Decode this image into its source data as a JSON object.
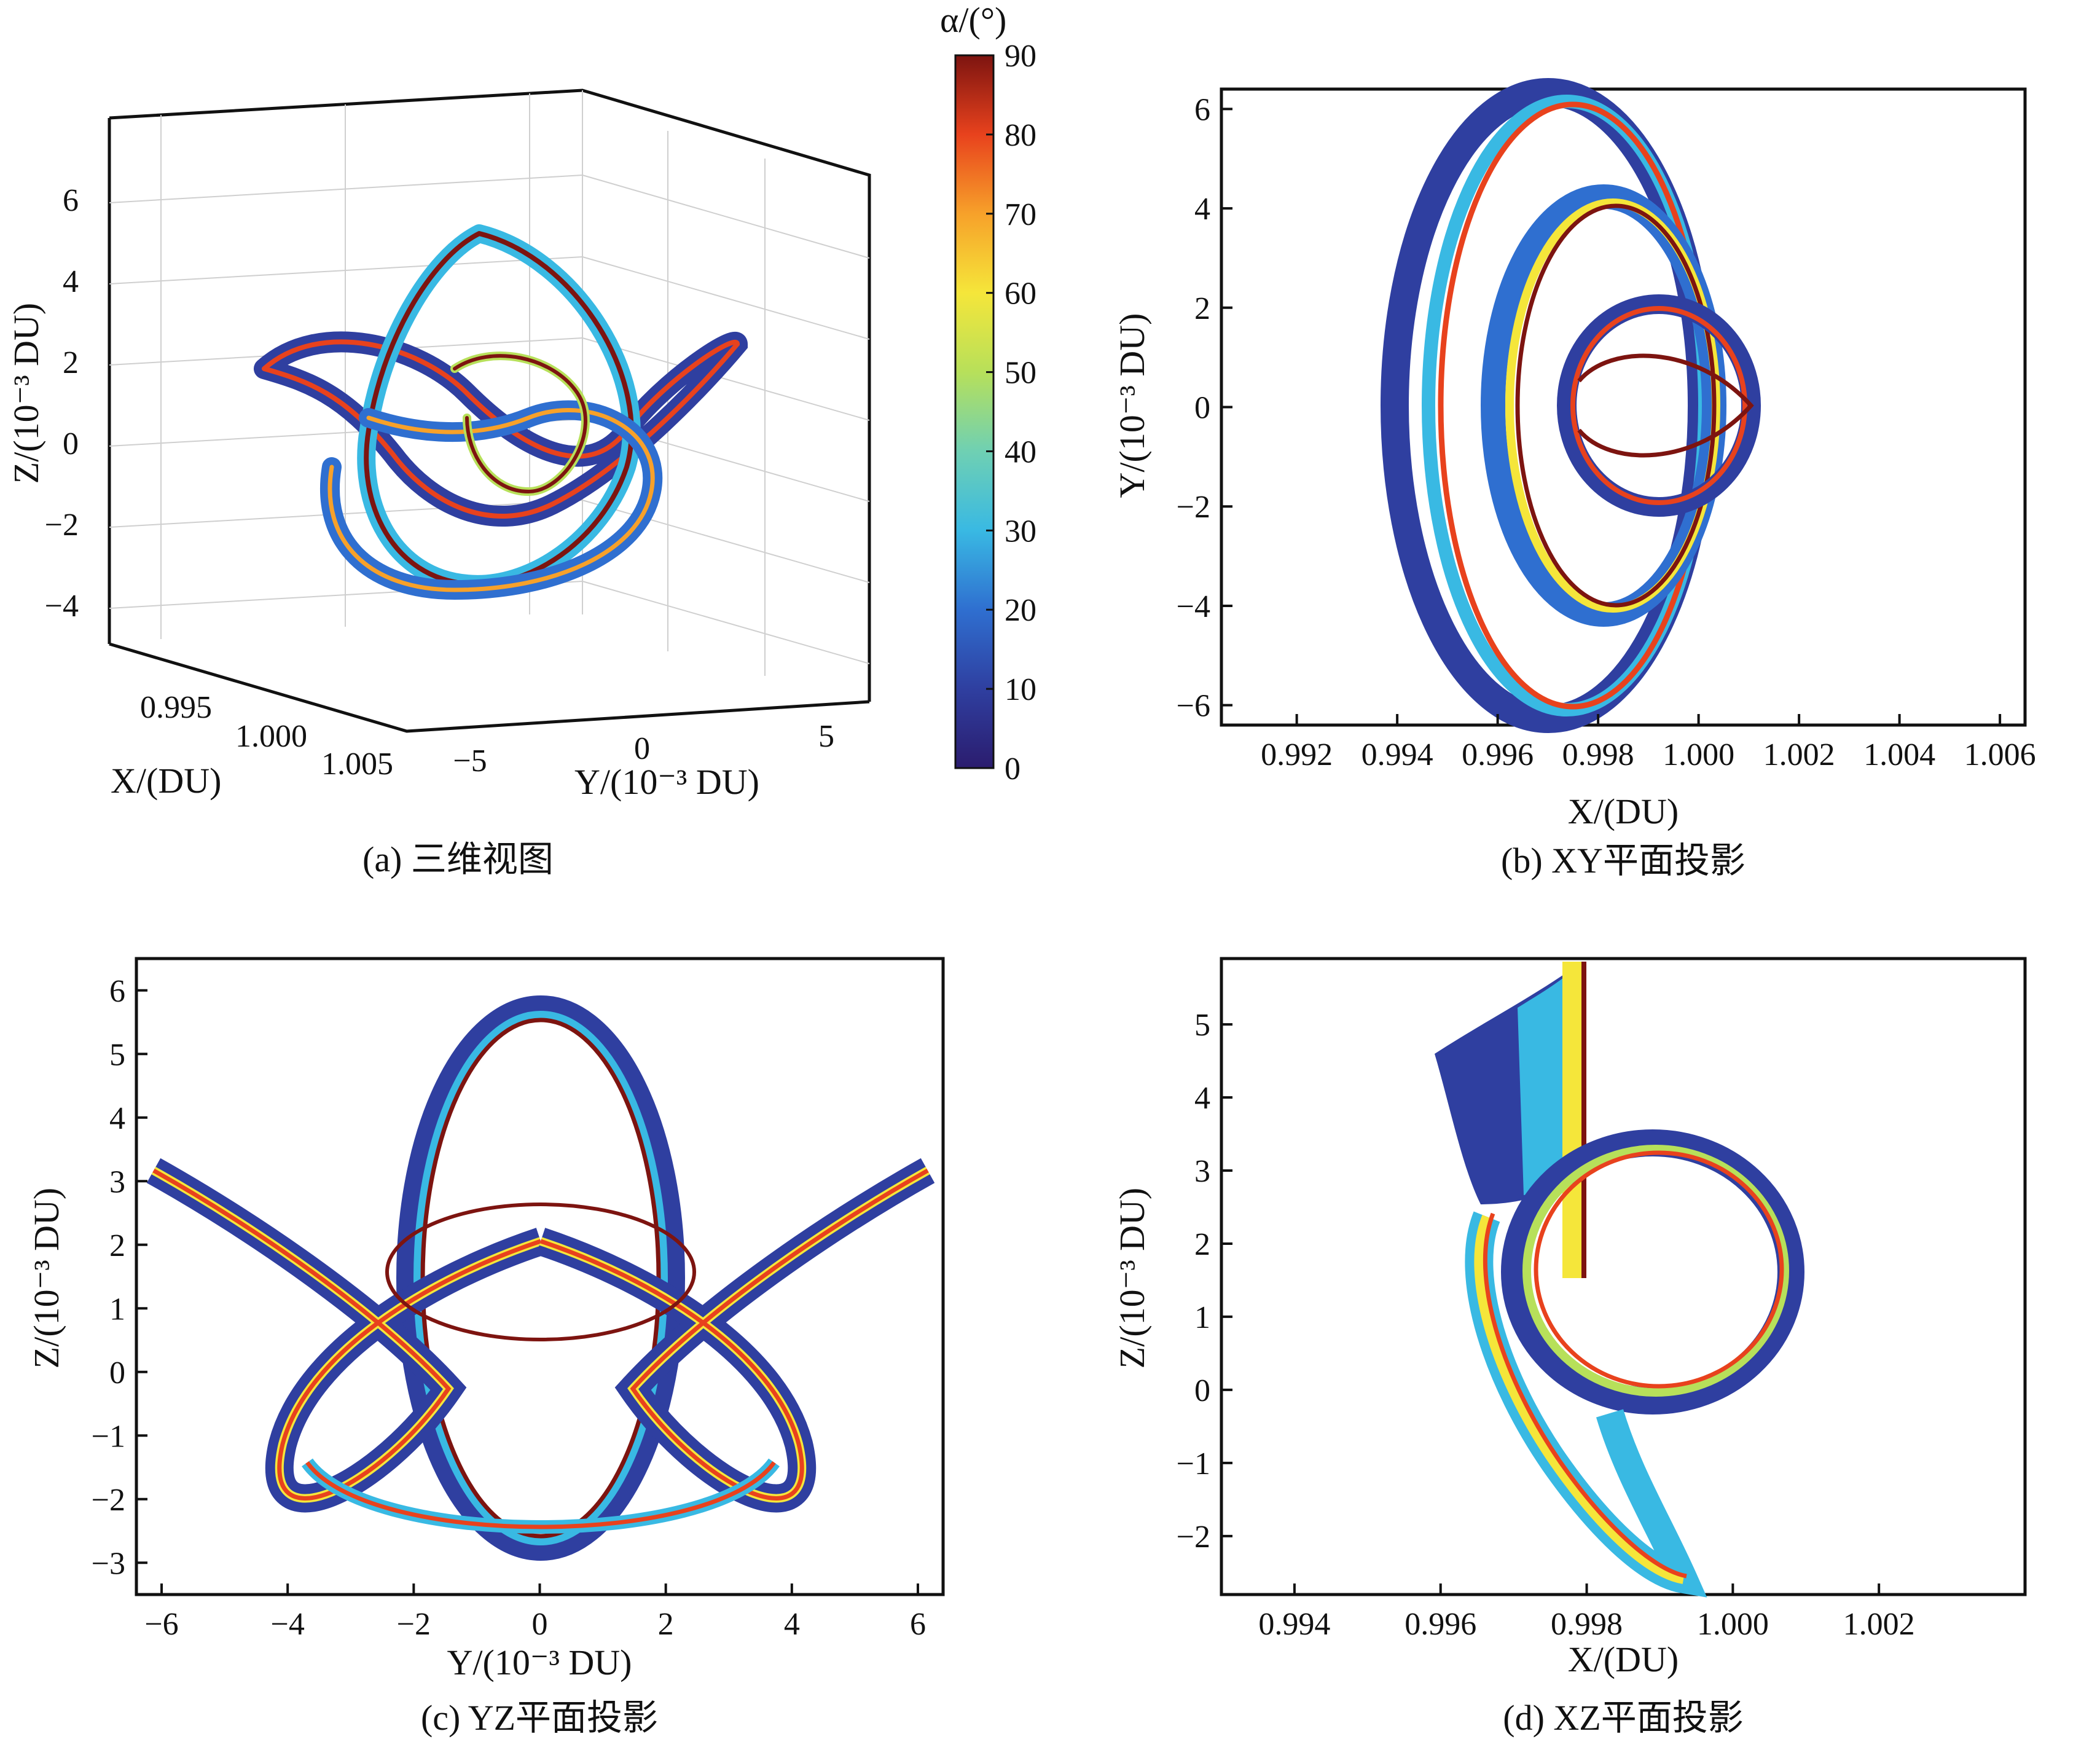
{
  "colorbar": {
    "label": "α/(°)",
    "ticks": [
      0,
      10,
      20,
      30,
      40,
      50,
      60,
      70,
      80,
      90
    ],
    "range": [
      0,
      90
    ],
    "colors": [
      "#2b1c6e",
      "#2f3fa0",
      "#2f6fd0",
      "#39b9e3",
      "#6fd0b3",
      "#b7e05a",
      "#f5e63a",
      "#f7a12a",
      "#e8421d",
      "#7d1410"
    ]
  },
  "chart_data": [
    {
      "id": "a",
      "type": "scatter",
      "caption": "(a) 三维视图",
      "xlabel": "X/(DU)",
      "ylabel": "Y/(10⁻³ DU)",
      "zlabel": "Z/(10⁻³ DU)",
      "x_ticks": [
        "0.995",
        "1.000",
        "1.005"
      ],
      "y_ticks": [
        "−5",
        "0",
        "5"
      ],
      "z_ticks": [
        "−4",
        "−2",
        "0",
        "2",
        "4",
        "6"
      ],
      "xlim": [
        0.993,
        1.006
      ],
      "ylim": [
        -6.5,
        6.5
      ],
      "zlim": [
        -4.5,
        6.5
      ]
    },
    {
      "id": "b",
      "type": "scatter",
      "caption": "(b) XY平面投影",
      "xlabel": "X/(DU)",
      "ylabel": "Y/(10⁻³ DU)",
      "x_ticks": [
        0.992,
        0.994,
        0.996,
        0.998,
        1.0,
        1.002,
        1.004,
        1.006
      ],
      "x_tick_labels": [
        "0.992",
        "0.994",
        "0.996",
        "0.998",
        "1.000",
        "1.002",
        "1.004",
        "1.006"
      ],
      "y_ticks": [
        -6,
        -4,
        -2,
        0,
        2,
        4,
        6
      ],
      "y_tick_labels": [
        "−6",
        "−4",
        "−2",
        "0",
        "2",
        "4",
        "6"
      ],
      "xlim": [
        0.9905,
        1.0065
      ],
      "ylim": [
        -6.4,
        6.4
      ]
    },
    {
      "id": "c",
      "type": "scatter",
      "caption": "(c) YZ平面投影",
      "xlabel": "Y/(10⁻³ DU)",
      "ylabel": "Z/(10⁻³ DU)",
      "x_ticks": [
        -6,
        -4,
        -2,
        0,
        2,
        4,
        6
      ],
      "x_tick_labels": [
        "−6",
        "−4",
        "−2",
        "0",
        "2",
        "4",
        "6"
      ],
      "y_ticks": [
        -3,
        -2,
        -1,
        0,
        1,
        2,
        3,
        4,
        5,
        6
      ],
      "y_tick_labels": [
        "−3",
        "−2",
        "−1",
        "0",
        "1",
        "2",
        "3",
        "4",
        "5",
        "6"
      ],
      "xlim": [
        -6.4,
        6.4
      ],
      "ylim": [
        -3.5,
        6.5
      ]
    },
    {
      "id": "d",
      "type": "scatter",
      "caption": "(d) XZ平面投影",
      "xlabel": "X/(DU)",
      "ylabel": "Z/(10⁻³ DU)",
      "x_ticks": [
        0.994,
        0.996,
        0.998,
        1.0,
        1.002
      ],
      "x_tick_labels": [
        "0.994",
        "0.996",
        "0.998",
        "1.000",
        "1.002"
      ],
      "y_ticks": [
        -2,
        -1,
        0,
        1,
        2,
        3,
        4,
        5
      ],
      "y_tick_labels": [
        "−2",
        "−1",
        "0",
        "1",
        "2",
        "3",
        "4",
        "5"
      ],
      "xlim": [
        0.993,
        1.004
      ],
      "ylim": [
        -2.8,
        5.9
      ]
    }
  ]
}
